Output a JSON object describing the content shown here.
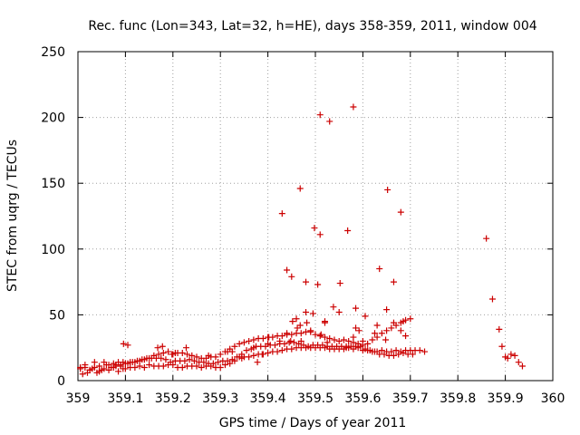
{
  "chart_data": {
    "type": "scatter",
    "title": "Rec. func (Lon=343, Lat=32, h=HE), days 358-359, 2011, window 004",
    "xlabel": "GPS time / Days of year 2011",
    "ylabel": "STEC from uqrg / TECUs",
    "xlim": [
      359,
      360
    ],
    "ylim": [
      0,
      250
    ],
    "xticks": [
      "359",
      "359.1",
      "359.2",
      "359.3",
      "359.4",
      "359.5",
      "359.6",
      "359.7",
      "359.8",
      "359.9",
      "360"
    ],
    "yticks": [
      "0",
      "50",
      "100",
      "150",
      "200",
      "250"
    ],
    "grid": true,
    "legend": "none",
    "marker": "+",
    "color": "#cc0000",
    "series": [
      {
        "x": [
          359.005,
          359.01,
          359.015,
          359.02,
          359.025,
          359.03,
          359.035,
          359.04,
          359.045,
          359.05,
          359.055,
          359.06,
          359.065,
          359.07,
          359.075,
          359.08,
          359.085,
          359.09,
          359.095,
          359.1,
          359.11,
          359.12,
          359.13,
          359.14,
          359.15,
          359.16,
          359.17,
          359.18,
          359.19,
          359.2,
          359.21,
          359.22,
          359.23,
          359.24,
          359.25,
          359.26,
          359.27,
          359.28,
          359.29,
          359.3,
          359.31,
          359.32,
          359.33,
          359.34,
          359.35,
          359.36,
          359.37,
          359.38,
          359.39,
          359.4,
          359.41,
          359.42,
          359.43,
          359.44,
          359.45,
          359.46,
          359.47,
          359.48,
          359.49,
          359.5,
          359.51,
          359.52,
          359.53,
          359.54,
          359.55,
          359.56,
          359.57,
          359.58,
          359.59,
          359.6,
          359.61,
          359.62,
          359.63,
          359.64,
          359.65,
          359.66,
          359.67,
          359.68,
          359.69,
          359.7,
          359.71,
          359.72,
          359.73,
          359.005,
          359.015,
          359.025,
          359.035,
          359.045,
          359.055,
          359.065,
          359.075,
          359.085,
          359.095,
          359.105,
          359.115,
          359.125,
          359.135,
          359.145,
          359.155,
          359.165,
          359.175,
          359.185,
          359.195,
          359.205,
          359.215,
          359.225,
          359.235,
          359.245,
          359.255,
          359.265,
          359.275,
          359.285,
          359.295,
          359.305,
          359.315,
          359.325,
          359.335,
          359.345,
          359.355,
          359.365,
          359.375,
          359.385,
          359.395,
          359.405,
          359.415,
          359.425,
          359.435,
          359.445,
          359.455,
          359.465,
          359.475,
          359.485,
          359.495,
          359.505,
          359.515,
          359.525,
          359.535,
          359.545,
          359.555,
          359.565,
          359.575,
          359.585,
          359.595,
          359.605,
          359.615,
          359.625,
          359.635,
          359.645,
          359.655,
          359.665,
          359.675,
          359.685,
          359.695,
          359.705,
          359.08,
          359.09,
          359.1,
          359.11,
          359.12,
          359.13,
          359.14,
          359.15,
          359.16,
          359.17,
          359.18,
          359.19,
          359.2,
          359.21,
          359.22,
          359.23,
          359.24,
          359.25,
          359.26,
          359.27,
          359.28,
          359.29,
          359.3,
          359.31,
          359.32,
          359.33,
          359.34,
          359.35,
          359.36,
          359.37,
          359.38,
          359.39,
          359.4,
          359.41,
          359.42,
          359.43,
          359.44,
          359.45,
          359.46,
          359.47,
          359.48,
          359.49,
          359.5,
          359.51,
          359.52,
          359.53,
          359.54,
          359.55,
          359.56,
          359.57,
          359.58,
          359.59,
          359.6,
          359.61,
          359.62,
          359.63,
          359.64,
          359.65,
          359.66,
          359.67,
          359.68,
          359.69,
          359.7,
          359.096,
          359.105,
          359.168,
          359.178,
          359.198,
          359.205,
          359.228,
          359.275,
          359.315,
          359.325,
          359.345,
          359.37,
          359.378,
          359.388,
          359.4,
          359.402,
          359.425,
          359.44,
          359.448,
          359.452,
          359.46,
          359.462,
          359.468,
          359.47,
          359.48,
          359.482,
          359.49,
          359.495,
          359.505,
          359.512,
          359.52,
          359.525,
          359.538,
          359.55,
          359.565,
          359.58,
          359.585,
          359.592,
          359.6,
          359.605,
          359.625,
          359.63,
          359.648,
          359.65,
          359.665,
          359.68,
          359.685,
          359.69,
          359.43,
          359.44,
          359.45,
          359.468,
          359.48,
          359.498,
          359.51,
          359.52,
          359.552,
          359.568,
          359.58,
          359.635,
          359.652,
          359.665,
          359.68,
          359.51,
          359.53,
          359.585,
          359.86,
          359.873,
          359.887,
          359.893,
          359.9,
          359.905,
          359.912,
          359.92,
          359.928,
          359.936
        ],
        "y": [
          10,
          5,
          12,
          6,
          8,
          9,
          14,
          6,
          7,
          8,
          9,
          12,
          8,
          10,
          10,
          12,
          7,
          11,
          9,
          9,
          10,
          10,
          11,
          10,
          12,
          11,
          11,
          11,
          12,
          12,
          10,
          10,
          11,
          11,
          11,
          10,
          11,
          11,
          10,
          10,
          12,
          13,
          15,
          18,
          18,
          18,
          19,
          20,
          20,
          21,
          22,
          22,
          23,
          24,
          24,
          25,
          25,
          25,
          25,
          25,
          25,
          25,
          24,
          24,
          24,
          24,
          25,
          24,
          25,
          23,
          23,
          22,
          22,
          23,
          22,
          22,
          23,
          22,
          23,
          23,
          23,
          23,
          22,
          9,
          10,
          8,
          10,
          11,
          14,
          12,
          13,
          14,
          14,
          13,
          14,
          15,
          16,
          17,
          17,
          17,
          17,
          16,
          14,
          15,
          15,
          15,
          16,
          15,
          14,
          14,
          13,
          13,
          14,
          15,
          15,
          16,
          18,
          20,
          23,
          24,
          26,
          26,
          26,
          27,
          27,
          28,
          28,
          29,
          29,
          28,
          27,
          26,
          27,
          27,
          27,
          26,
          26,
          26,
          26,
          26,
          26,
          26,
          26,
          24,
          23,
          22,
          20,
          20,
          19,
          19,
          20,
          21,
          20,
          20,
          11,
          12,
          13,
          14,
          14,
          15,
          16,
          17,
          19,
          20,
          21,
          22,
          20,
          21,
          21,
          20,
          19,
          18,
          17,
          17,
          18,
          18,
          20,
          22,
          24,
          26,
          28,
          29,
          30,
          31,
          32,
          32,
          33,
          33,
          34,
          34,
          35,
          35,
          36,
          36,
          37,
          38,
          35,
          34,
          33,
          32,
          31,
          30,
          31,
          30,
          29,
          28,
          27,
          28,
          31,
          33,
          36,
          38,
          40,
          42,
          44,
          46,
          47,
          28,
          27,
          25,
          26,
          20,
          21,
          25,
          19,
          22,
          22,
          17,
          25,
          14,
          20,
          28,
          33,
          30,
          36,
          30,
          45,
          47,
          40,
          42,
          30,
          52,
          44,
          37,
          51,
          73,
          35,
          44,
          29,
          56,
          52,
          25,
          33,
          40,
          38,
          30,
          49,
          36,
          42,
          31,
          54,
          44,
          38,
          45,
          34,
          127,
          84,
          79,
          146,
          75,
          116,
          111,
          45,
          74,
          114,
          208,
          85,
          145,
          75,
          128,
          202,
          197,
          55,
          108,
          62,
          39,
          26,
          18,
          17,
          20,
          19,
          14,
          11
        ]
      }
    ]
  }
}
